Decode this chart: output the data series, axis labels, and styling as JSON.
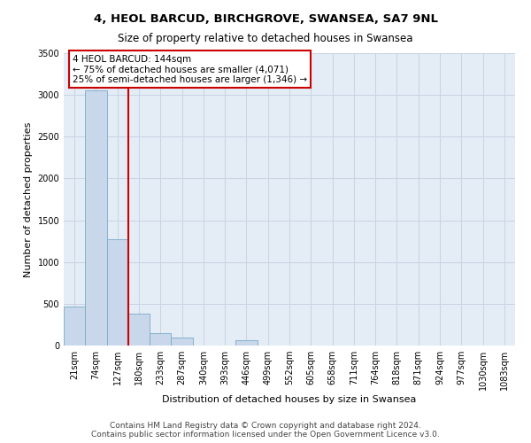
{
  "title1": "4, HEOL BARCUD, BIRCHGROVE, SWANSEA, SA7 9NL",
  "title2": "Size of property relative to detached houses in Swansea",
  "xlabel": "Distribution of detached houses by size in Swansea",
  "ylabel": "Number of detached properties",
  "footer1": "Contains HM Land Registry data © Crown copyright and database right 2024.",
  "footer2": "Contains public sector information licensed under the Open Government Licence v3.0.",
  "categories": [
    "21sqm",
    "74sqm",
    "127sqm",
    "180sqm",
    "233sqm",
    "287sqm",
    "340sqm",
    "393sqm",
    "446sqm",
    "499sqm",
    "552sqm",
    "605sqm",
    "658sqm",
    "711sqm",
    "764sqm",
    "818sqm",
    "871sqm",
    "924sqm",
    "977sqm",
    "1030sqm",
    "1083sqm"
  ],
  "values": [
    470,
    3050,
    1270,
    380,
    150,
    100,
    0,
    0,
    60,
    0,
    0,
    0,
    0,
    0,
    0,
    0,
    0,
    0,
    0,
    0,
    0
  ],
  "bar_color": "#c8d8ea",
  "bar_edge_color": "#7aaac8",
  "grid_color": "#c8d4e4",
  "background_color": "#e4ecf5",
  "red_line_color": "#cc0000",
  "annotation_text": "4 HEOL BARCUD: 144sqm\n← 75% of detached houses are smaller (4,071)\n25% of semi-detached houses are larger (1,346) →",
  "annotation_box_facecolor": "#ffffff",
  "annotation_border_color": "#cc0000",
  "ylim": [
    0,
    3500
  ],
  "yticks": [
    0,
    500,
    1000,
    1500,
    2000,
    2500,
    3000,
    3500
  ],
  "title1_fontsize": 9.5,
  "title2_fontsize": 8.5,
  "xlabel_fontsize": 8,
  "ylabel_fontsize": 8,
  "tick_fontsize": 7,
  "annotation_fontsize": 7.5,
  "footer_fontsize": 6.5
}
